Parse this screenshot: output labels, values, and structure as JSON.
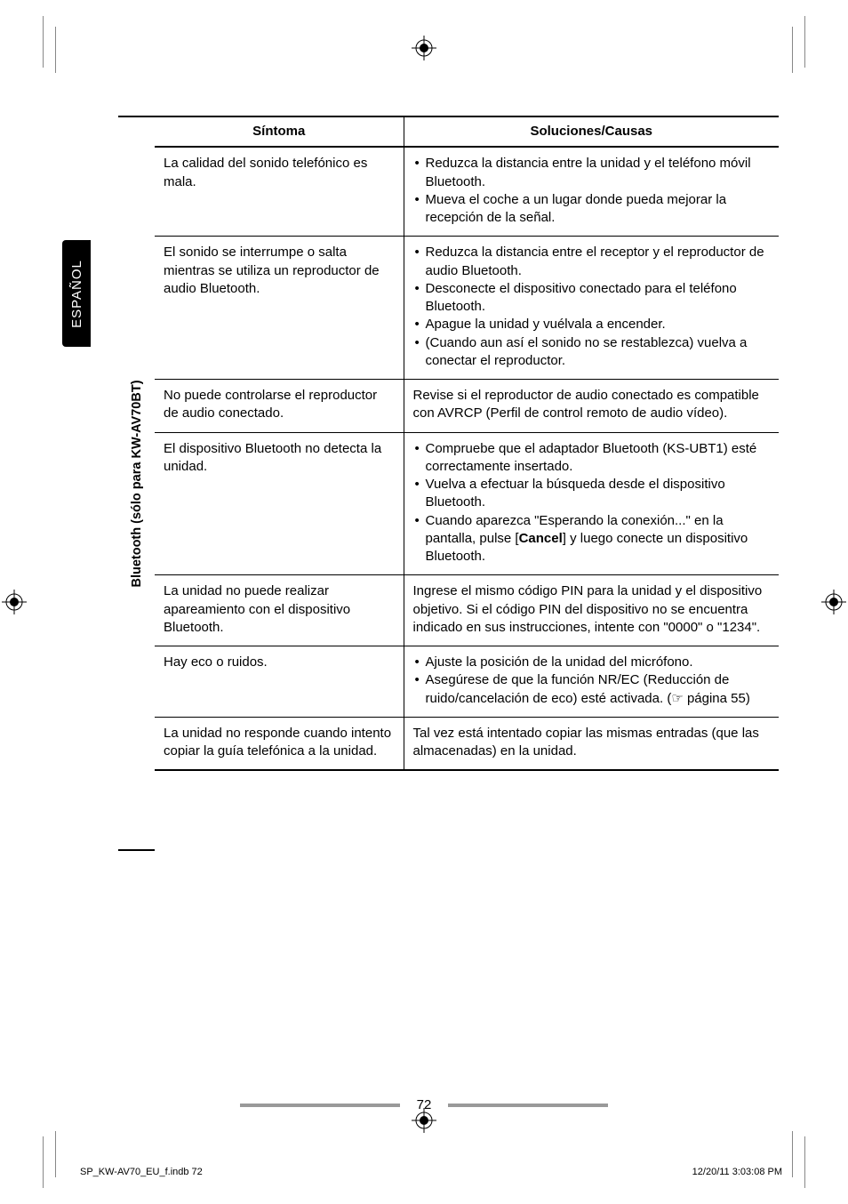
{
  "language_tab": "ESPAÑOL",
  "section_label": "Bluetooth (sólo para KW-AV70BT)",
  "table": {
    "headers": {
      "symptom": "Síntoma",
      "solution": "Soluciones/Causas"
    },
    "rows": [
      {
        "symptom": "La calidad del sonido telefónico es mala.",
        "bullets": [
          "Reduzca la distancia entre la unidad y el teléfono móvil Bluetooth.",
          "Mueva el coche a un lugar donde pueda mejorar la recepción de la señal."
        ]
      },
      {
        "symptom": "El sonido se interrumpe o salta mientras se utiliza un reproductor de audio Bluetooth.",
        "bullets": [
          "Reduzca la distancia entre el receptor y el reproductor de audio Bluetooth.",
          "Desconecte el dispositivo conectado para el teléfono Bluetooth.",
          "Apague la unidad y vuélvala a encender.",
          "(Cuando aun así el sonido no se restablezca) vuelva a conectar el reproductor."
        ]
      },
      {
        "symptom": "No puede controlarse el reproductor de audio conectado.",
        "plain": "Revise si el reproductor de audio conectado es compatible con AVRCP (Perfil de control remoto de audio vídeo)."
      },
      {
        "symptom": "El dispositivo Bluetooth no detecta la unidad.",
        "bullets": [
          "Compruebe que el adaptador Bluetooth (KS-UBT1) esté correctamente insertado.",
          "Vuelva a efectuar la búsqueda desde el dispositivo Bluetooth.",
          "Cuando aparezca \"Esperando la conexión...\" en la pantalla, pulse [Cancel] y luego conecte un dispositivo Bluetooth."
        ],
        "bold_in_last": "Cancel"
      },
      {
        "symptom": "La unidad no puede realizar apareamiento con el dispositivo Bluetooth.",
        "plain": "Ingrese el mismo código PIN para la unidad y el dispositivo objetivo. Si el código PIN del dispositivo no se encuentra indicado en sus instrucciones, intente con \"0000\" o \"1234\"."
      },
      {
        "symptom": "Hay eco o ruidos.",
        "bullets": [
          "Ajuste la posición de la unidad del micrófono.",
          "Asegúrese de que la función NR/EC (Reducción de ruido/cancelación de eco) esté activada. (☞ página 55)"
        ]
      },
      {
        "symptom": "La unidad no responde cuando intento copiar la guía telefónica a la unidad.",
        "plain": "Tal vez está intentado copiar las mismas entradas (que las almacenadas) en la unidad."
      }
    ]
  },
  "page_number": "72",
  "meta_left": "SP_KW-AV70_EU_f.indb   72",
  "meta_right": "12/20/11   3:03:08 PM",
  "colors": {
    "text": "#000000",
    "bg": "#ffffff",
    "tab_bg": "#000000",
    "tab_text": "#ffffff",
    "bar": "#999999"
  }
}
